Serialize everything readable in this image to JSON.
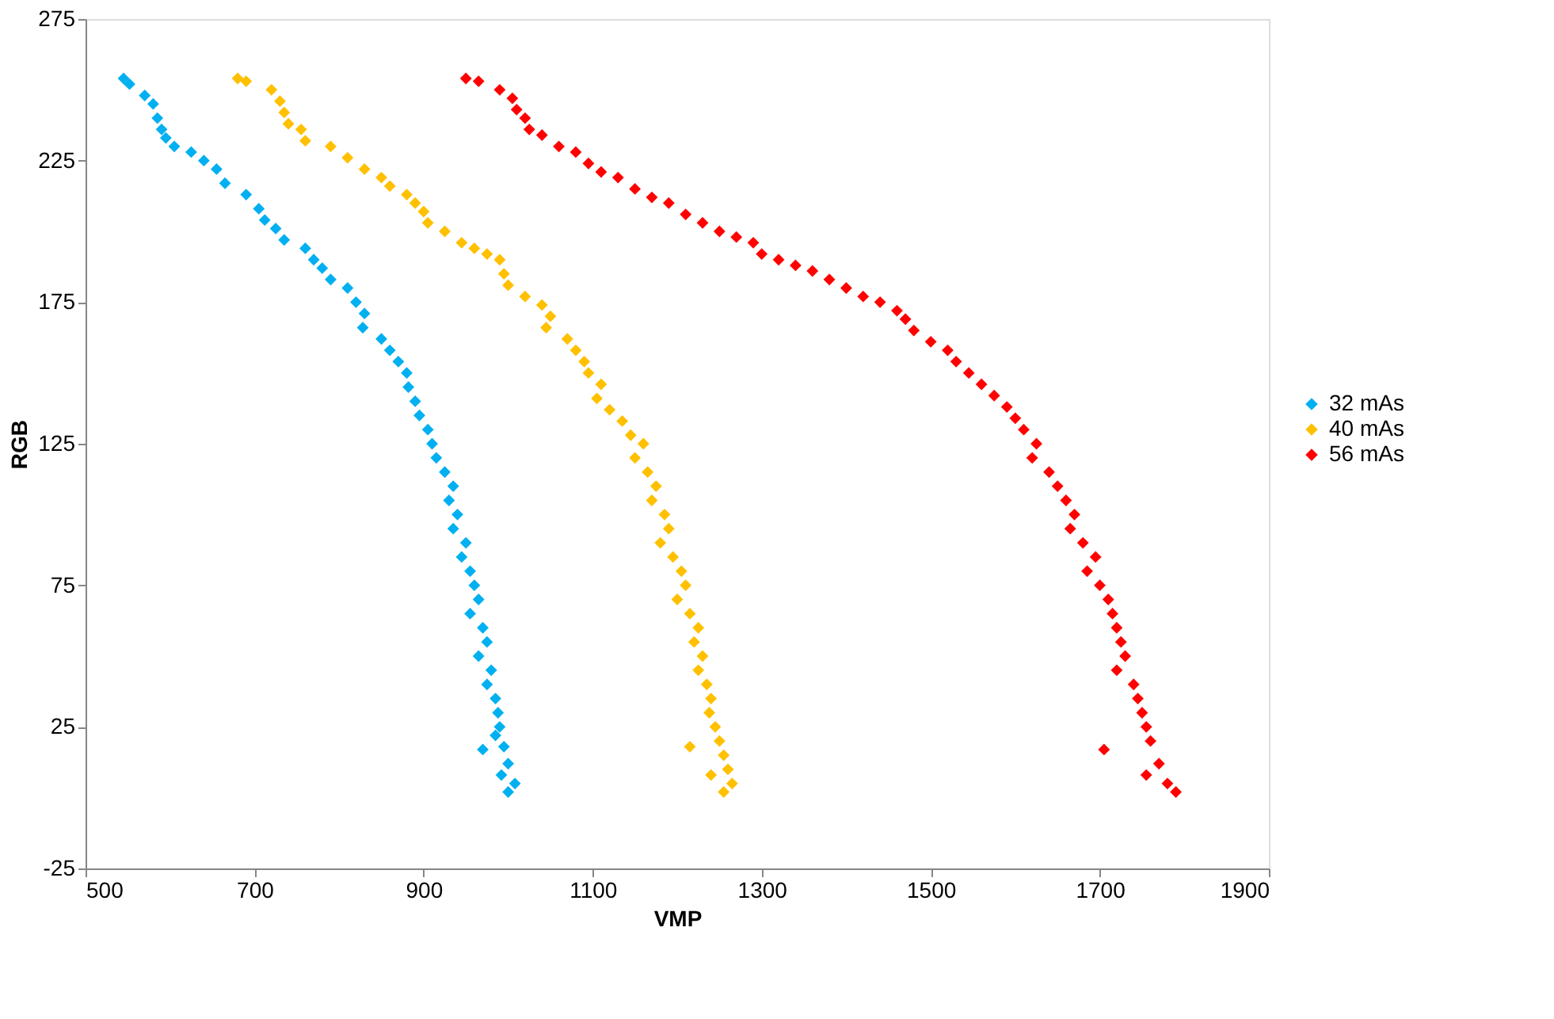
{
  "chart_data": {
    "type": "scatter",
    "xlabel": "VMP",
    "ylabel": "RGB",
    "xlim": [
      500,
      1900
    ],
    "xticks": [
      500,
      700,
      900,
      1100,
      1300,
      1500,
      1700,
      1900
    ],
    "ylim": [
      -25,
      275
    ],
    "yticks": [
      -25,
      25,
      75,
      125,
      175,
      225,
      275
    ],
    "grid": false,
    "legend": "right",
    "marker": "diamond",
    "series": [
      {
        "name": "32 mAs",
        "color": "#00b0f0",
        "x": [
          545,
          552,
          570,
          580,
          585,
          590,
          595,
          605,
          625,
          640,
          655,
          665,
          690,
          705,
          712,
          725,
          735,
          760,
          770,
          780,
          790,
          810,
          820,
          830,
          828,
          850,
          860,
          870,
          880,
          882,
          890,
          895,
          905,
          910,
          915,
          925,
          935,
          930,
          940,
          935,
          950,
          945,
          955,
          960,
          965,
          955,
          970,
          975,
          965,
          980,
          975,
          985,
          988,
          990,
          985,
          995,
          970,
          1000,
          992,
          1008,
          1000
        ],
        "values": [
          254,
          252,
          248,
          245,
          240,
          236,
          233,
          230,
          228,
          225,
          222,
          217,
          213,
          208,
          204,
          201,
          197,
          194,
          190,
          187,
          183,
          180,
          175,
          171,
          166,
          162,
          158,
          154,
          150,
          145,
          140,
          135,
          130,
          125,
          120,
          115,
          110,
          105,
          100,
          95,
          90,
          85,
          80,
          75,
          70,
          65,
          60,
          55,
          50,
          45,
          40,
          35,
          30,
          25,
          22,
          18,
          17,
          12,
          8,
          5,
          2
        ]
      },
      {
        "name": "40 mAs",
        "color": "#ffc000",
        "x": [
          680,
          690,
          720,
          730,
          735,
          740,
          755,
          760,
          790,
          810,
          830,
          850,
          860,
          880,
          890,
          900,
          905,
          925,
          945,
          960,
          975,
          990,
          995,
          1000,
          1020,
          1040,
          1050,
          1045,
          1070,
          1080,
          1090,
          1095,
          1110,
          1105,
          1120,
          1135,
          1145,
          1160,
          1150,
          1165,
          1175,
          1170,
          1185,
          1190,
          1180,
          1195,
          1205,
          1210,
          1200,
          1215,
          1225,
          1220,
          1230,
          1225,
          1235,
          1240,
          1238,
          1245,
          1250,
          1215,
          1255,
          1260,
          1240,
          1265,
          1255
        ],
        "values": [
          254,
          253,
          250,
          246,
          242,
          238,
          236,
          232,
          230,
          226,
          222,
          219,
          216,
          213,
          210,
          207,
          203,
          200,
          196,
          194,
          192,
          190,
          185,
          181,
          177,
          174,
          170,
          166,
          162,
          158,
          154,
          150,
          146,
          141,
          137,
          133,
          128,
          125,
          120,
          115,
          110,
          105,
          100,
          95,
          90,
          85,
          80,
          75,
          70,
          65,
          60,
          55,
          50,
          45,
          40,
          35,
          30,
          25,
          20,
          18,
          15,
          10,
          8,
          5,
          2
        ]
      },
      {
        "name": "56 mAs",
        "color": "#ff0000",
        "x": [
          950,
          965,
          990,
          1005,
          1010,
          1020,
          1025,
          1040,
          1060,
          1080,
          1095,
          1110,
          1130,
          1150,
          1170,
          1190,
          1210,
          1230,
          1250,
          1270,
          1290,
          1300,
          1320,
          1340,
          1360,
          1380,
          1400,
          1420,
          1440,
          1460,
          1470,
          1480,
          1500,
          1520,
          1530,
          1545,
          1560,
          1575,
          1590,
          1600,
          1610,
          1625,
          1620,
          1640,
          1650,
          1660,
          1670,
          1665,
          1680,
          1695,
          1685,
          1700,
          1710,
          1715,
          1720,
          1725,
          1730,
          1720,
          1740,
          1745,
          1750,
          1755,
          1760,
          1705,
          1770,
          1755,
          1780,
          1790
        ],
        "values": [
          254,
          253,
          250,
          247,
          243,
          240,
          236,
          234,
          230,
          228,
          224,
          221,
          219,
          215,
          212,
          210,
          206,
          203,
          200,
          198,
          196,
          192,
          190,
          188,
          186,
          183,
          180,
          177,
          175,
          172,
          169,
          165,
          161,
          158,
          154,
          150,
          146,
          142,
          138,
          134,
          130,
          125,
          120,
          115,
          110,
          105,
          100,
          95,
          90,
          85,
          80,
          75,
          70,
          65,
          60,
          55,
          50,
          45,
          40,
          35,
          30,
          25,
          20,
          17,
          12,
          8,
          5,
          2
        ]
      }
    ]
  }
}
